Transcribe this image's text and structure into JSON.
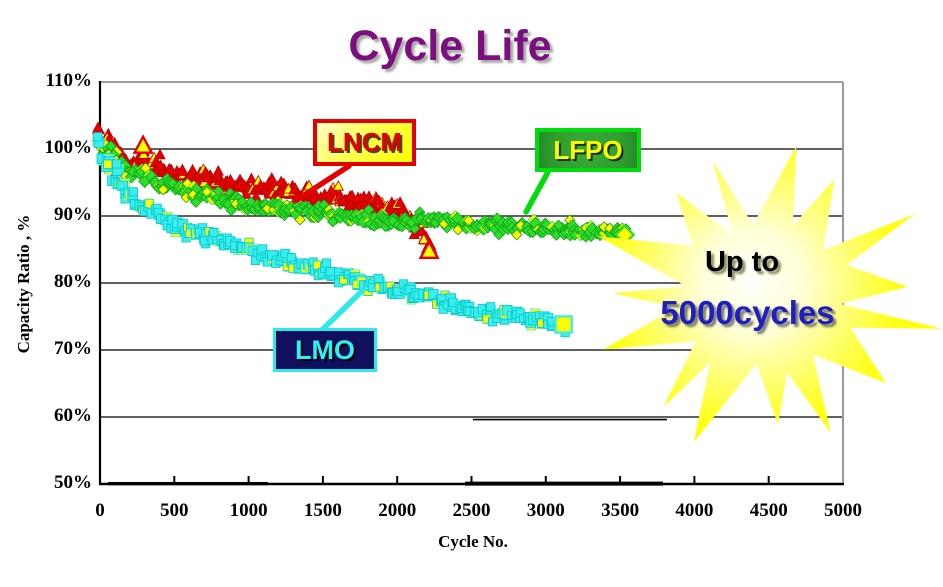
{
  "title": "Cycle Life",
  "burst": {
    "line1": "Up to",
    "line2": "5000cycles",
    "text_color": "#1F1FC0"
  },
  "colors": {
    "title": "#7B0F7E",
    "accent_yellow": "#FFFF00",
    "grid": "#000000",
    "frame_gray": "#808080",
    "lncm_red": "#E60000",
    "lfpo_green": "#2EDC2E",
    "lmo_cyan": "#3CEDED"
  },
  "chart_data": {
    "type": "scatter",
    "title": "Cycle Life",
    "xlabel": "Cycle No.",
    "ylabel": "Capacity Ratio , %",
    "xlim": [
      0,
      5000
    ],
    "ylim": [
      50,
      110
    ],
    "x_ticks": [
      0,
      500,
      1000,
      1500,
      2000,
      2500,
      3000,
      3500,
      4000,
      4500,
      5000
    ],
    "y_ticks": [
      110,
      100,
      90,
      80,
      70,
      60,
      50
    ],
    "y_tick_suffix": "%",
    "grid": "horizontal",
    "legend_position": "callout-labels-on-plot",
    "annotation": "Up to 5000cycles",
    "series": [
      {
        "name": "LNCM",
        "marker": "triangle",
        "color": "#E60000",
        "edge": "#B80000",
        "accent": "#FFFF00",
        "points": [
          [
            0,
            101.5
          ],
          [
            40,
            100.6
          ],
          [
            80,
            99.8
          ],
          [
            120,
            99.2
          ],
          [
            160,
            98.6
          ],
          [
            200,
            98.2
          ],
          [
            240,
            98.0
          ],
          [
            290,
            100.4
          ],
          [
            320,
            98.6
          ],
          [
            360,
            97.6
          ],
          [
            420,
            97.1
          ],
          [
            500,
            96.6
          ],
          [
            600,
            96.1
          ],
          [
            700,
            95.7
          ],
          [
            800,
            95.3
          ],
          [
            900,
            94.9
          ],
          [
            1000,
            94.6
          ],
          [
            1100,
            94.3
          ],
          [
            1200,
            94.0
          ],
          [
            1300,
            93.7
          ],
          [
            1400,
            93.4
          ],
          [
            1500,
            93.0
          ],
          [
            1600,
            92.7
          ],
          [
            1700,
            92.3
          ],
          [
            1800,
            92.0
          ],
          [
            1900,
            91.4
          ],
          [
            1980,
            90.8
          ],
          [
            2050,
            89.9
          ],
          [
            2120,
            88.6
          ],
          [
            2170,
            87.2
          ],
          [
            2210,
            85.6
          ],
          [
            2230,
            84.9
          ]
        ],
        "big_markers": [
          [
            290,
            100.5
          ],
          [
            2215,
            84.8
          ]
        ]
      },
      {
        "name": "LFPO",
        "marker": "diamond",
        "color": "#2EDC2E",
        "edge": "#0FA30F",
        "accent": "#FFFF00",
        "points": [
          [
            0,
            100.3
          ],
          [
            60,
            98.9
          ],
          [
            120,
            97.8
          ],
          [
            200,
            96.7
          ],
          [
            300,
            95.7
          ],
          [
            400,
            94.9
          ],
          [
            500,
            94.2
          ],
          [
            600,
            93.6
          ],
          [
            700,
            93.1
          ],
          [
            800,
            92.6
          ],
          [
            900,
            92.2
          ],
          [
            1000,
            91.8
          ],
          [
            1100,
            91.5
          ],
          [
            1200,
            91.2
          ],
          [
            1300,
            90.9
          ],
          [
            1400,
            90.6
          ],
          [
            1500,
            90.3
          ],
          [
            1600,
            90.1
          ],
          [
            1700,
            89.8
          ],
          [
            1800,
            89.6
          ],
          [
            1900,
            89.4
          ],
          [
            2000,
            89.3
          ],
          [
            2100,
            89.2
          ],
          [
            2200,
            89.5
          ],
          [
            2300,
            89.2
          ],
          [
            2400,
            89.0
          ],
          [
            2500,
            88.9
          ],
          [
            2600,
            88.7
          ],
          [
            2700,
            88.6
          ],
          [
            2800,
            88.5
          ],
          [
            2900,
            88.4
          ],
          [
            3000,
            88.3
          ],
          [
            3100,
            88.1
          ],
          [
            3200,
            87.9
          ],
          [
            3300,
            87.7
          ],
          [
            3400,
            87.5
          ],
          [
            3530,
            87.2
          ]
        ],
        "big_markers": [
          [
            3530,
            87.2
          ]
        ]
      },
      {
        "name": "LMO",
        "marker": "square",
        "color": "#3CEDED",
        "edge": "#00C8C8",
        "accent": "#FFFF00",
        "points": [
          [
            0,
            100.0
          ],
          [
            50,
            97.6
          ],
          [
            100,
            95.9
          ],
          [
            150,
            94.5
          ],
          [
            200,
            93.3
          ],
          [
            250,
            92.3
          ],
          [
            300,
            91.4
          ],
          [
            350,
            90.7
          ],
          [
            400,
            90.0
          ],
          [
            500,
            88.9
          ],
          [
            600,
            88.0
          ],
          [
            700,
            87.2
          ],
          [
            800,
            86.4
          ],
          [
            900,
            85.7
          ],
          [
            1000,
            85.0
          ],
          [
            1100,
            84.3
          ],
          [
            1200,
            83.7
          ],
          [
            1300,
            83.0
          ],
          [
            1400,
            82.4
          ],
          [
            1500,
            81.8
          ],
          [
            1600,
            81.2
          ],
          [
            1700,
            80.6
          ],
          [
            1800,
            80.1
          ],
          [
            1900,
            79.5
          ],
          [
            2000,
            78.9
          ],
          [
            2100,
            78.4
          ],
          [
            2200,
            77.8
          ],
          [
            2300,
            77.3
          ],
          [
            2400,
            76.8
          ],
          [
            2500,
            76.3
          ],
          [
            2600,
            75.9
          ],
          [
            2700,
            75.4
          ],
          [
            2800,
            75.0
          ],
          [
            2900,
            74.6
          ],
          [
            3000,
            74.2
          ],
          [
            3120,
            73.8
          ]
        ],
        "big_markers": [
          [
            3120,
            73.8
          ]
        ]
      }
    ]
  }
}
